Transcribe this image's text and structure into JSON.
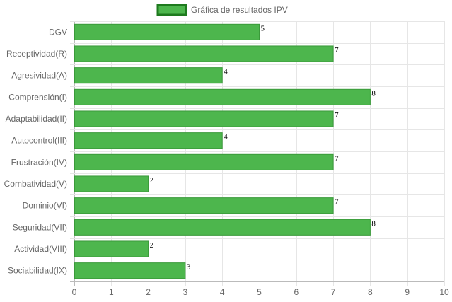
{
  "chart_data": {
    "type": "bar",
    "orientation": "horizontal",
    "categories": [
      "DGV",
      "Receptividad(R)",
      "Agresividad(A)",
      "Comprensión(I)",
      "Adaptabilidad(II)",
      "Autocontrol(III)",
      "Frustración(IV)",
      "Combatividad(V)",
      "Dominio(VI)",
      "Seguridad(VII)",
      "Actividad(VIII)",
      "Sociabilidad(IX)"
    ],
    "series": [
      {
        "name": "Gráfica de resultados IPV",
        "values": [
          5,
          7,
          4,
          8,
          7,
          4,
          7,
          2,
          7,
          8,
          2,
          3
        ]
      }
    ],
    "title": "",
    "xlabel": "",
    "ylabel": "",
    "xlim": [
      0,
      10
    ],
    "x_ticks": [
      "0",
      "1",
      "2",
      "3",
      "4",
      "5",
      "6",
      "7",
      "8",
      "9",
      "10"
    ],
    "grid": true,
    "legend_position": "top",
    "data_labels": true,
    "colors": {
      "bar_fill": "#4db64d",
      "bar_border": "#3a9a3a",
      "legend_border": "#1e7a1e",
      "grid": "#e6e6e6",
      "axis": "#bbbbbb"
    }
  }
}
